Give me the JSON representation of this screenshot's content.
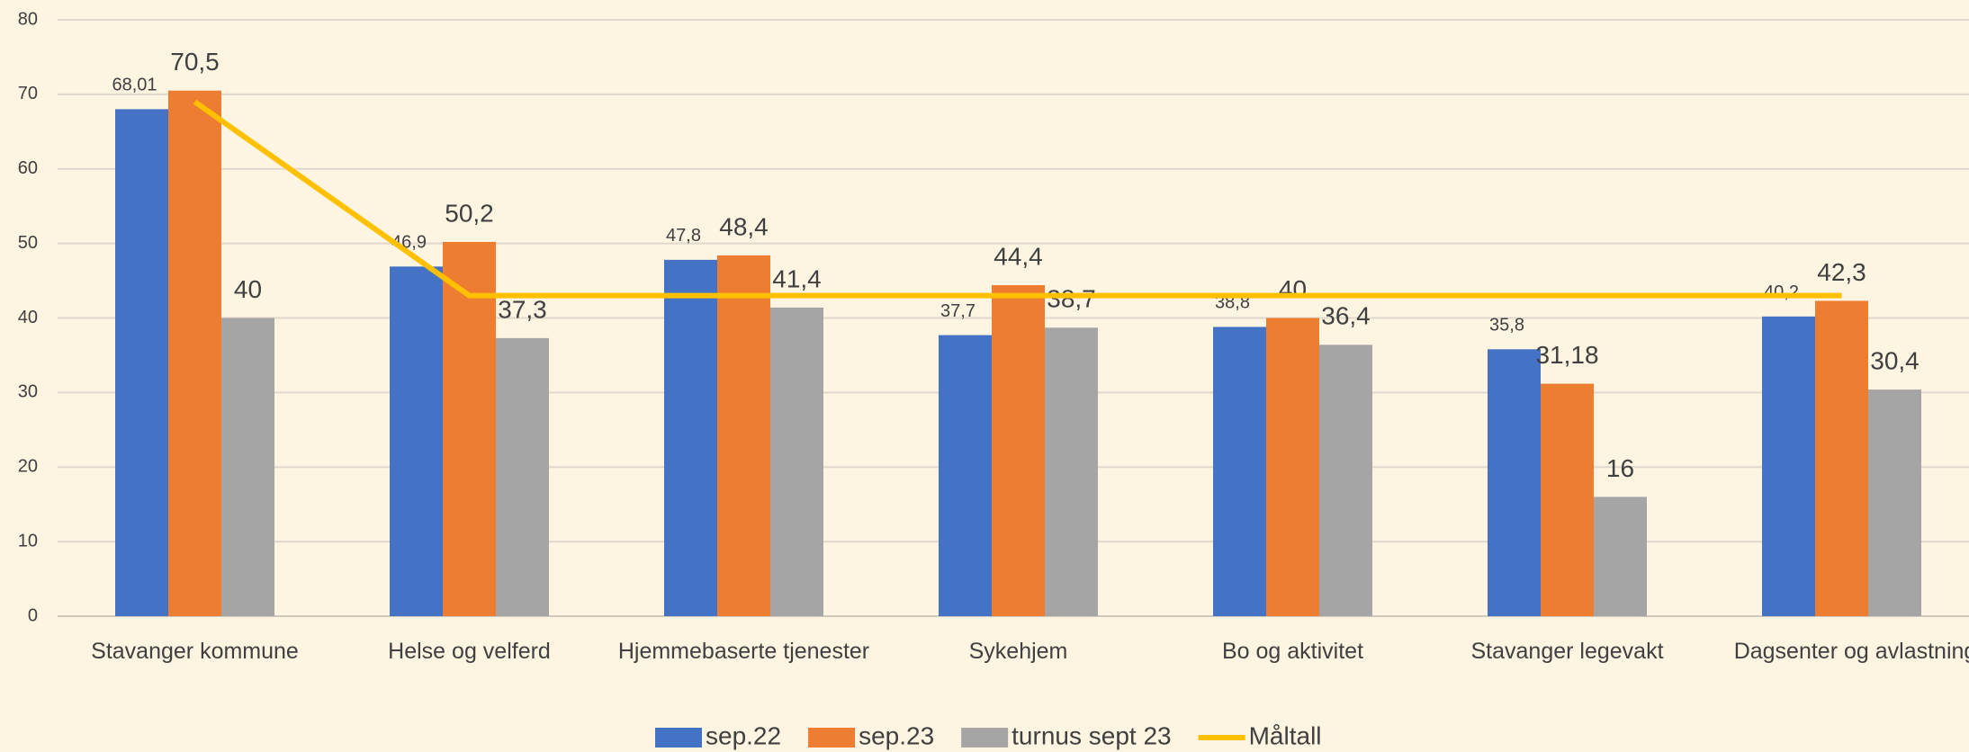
{
  "chart_data": {
    "type": "bar",
    "categories": [
      "Stavanger kommune",
      "Helse og velferd",
      "Hjemmebaserte tjenester",
      "Sykehjem",
      "Bo og aktivitet",
      "Stavanger legevakt",
      "Dagsenter og avlastning"
    ],
    "series": [
      {
        "name": "sep.22",
        "color": "#4472c4",
        "values": [
          68.01,
          46.9,
          47.8,
          37.7,
          38.8,
          35.8,
          40.2
        ],
        "value_labels": [
          "68,01",
          "46,9",
          "47,8",
          "37,7",
          "38,8",
          "35,8",
          "40,2"
        ]
      },
      {
        "name": "sep.23",
        "color": "#ed7d31",
        "values": [
          70.5,
          50.2,
          48.4,
          44.4,
          40,
          31.18,
          42.3
        ],
        "value_labels": [
          "70,5",
          "50,2",
          "48,4",
          "44,4",
          "40",
          "31,18",
          "42,3"
        ]
      },
      {
        "name": "turnus sept 23",
        "color": "#a5a5a5",
        "values": [
          40,
          37.3,
          41.4,
          38.7,
          36.4,
          16,
          30.4
        ],
        "value_labels": [
          "40",
          "37,3",
          "41,4",
          "38,7",
          "36,4",
          "16",
          "30,4"
        ]
      },
      {
        "name": "Måltall",
        "type": "line",
        "color": "#ffc000",
        "values": [
          69,
          43,
          43,
          43,
          43,
          43,
          43
        ]
      }
    ],
    "ylim": [
      0,
      80
    ],
    "yticks": [
      0,
      10,
      20,
      30,
      40,
      50,
      60,
      70,
      80
    ],
    "grid": true,
    "legend": "bottom"
  }
}
